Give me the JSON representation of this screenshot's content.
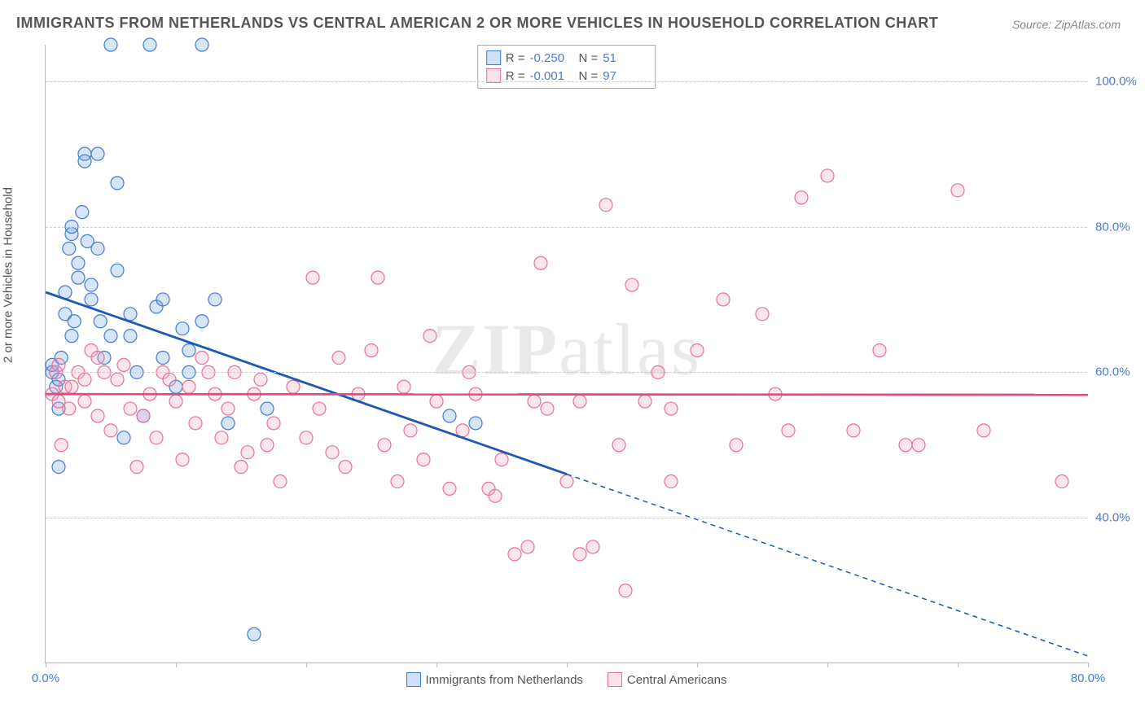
{
  "title": "IMMIGRANTS FROM NETHERLANDS VS CENTRAL AMERICAN 2 OR MORE VEHICLES IN HOUSEHOLD CORRELATION CHART",
  "source": "Source: ZipAtlas.com",
  "watermark": {
    "part1": "ZIP",
    "part2": "atlas"
  },
  "ylabel": "2 or more Vehicles in Household",
  "chart": {
    "type": "scatter",
    "background_color": "#ffffff",
    "grid_color": "#cccccc",
    "axis_color": "#bbbbbb",
    "xlim": [
      0,
      80
    ],
    "ylim": [
      20,
      105
    ],
    "xticks": [
      0,
      10,
      20,
      30,
      40,
      50,
      60,
      70,
      80
    ],
    "xtick_labels": [
      "0.0%",
      "",
      "",
      "",
      "",
      "",
      "",
      "",
      "80.0%"
    ],
    "yticks": [
      40,
      60,
      80,
      100
    ],
    "ytick_labels": [
      "40.0%",
      "60.0%",
      "80.0%",
      "100.0%"
    ],
    "tick_color": "#4a7bd0",
    "label_color": "#555555",
    "marker_radius": 8,
    "marker_stroke_width": 1.2,
    "marker_fill_opacity": 0.28,
    "trend_line_width": 2.8,
    "trend_dash": "6,5"
  },
  "series": [
    {
      "key": "netherlands",
      "label": "Immigrants from Netherlands",
      "color": "#6ea3e8",
      "stroke": "#3f7ad1",
      "line_color": "#1b58b8",
      "R": "-0.250",
      "N": "51",
      "trend": {
        "x1": 0,
        "y1": 71,
        "x2": 40,
        "y2": 46,
        "x_extend": 80,
        "y_extend": 21
      },
      "points": [
        [
          0.5,
          60
        ],
        [
          0.5,
          61
        ],
        [
          0.8,
          58
        ],
        [
          1,
          59
        ],
        [
          1,
          55
        ],
        [
          1,
          47
        ],
        [
          1.2,
          62
        ],
        [
          1.5,
          68
        ],
        [
          1.5,
          71
        ],
        [
          1.8,
          77
        ],
        [
          2,
          79
        ],
        [
          2,
          80
        ],
        [
          2,
          65
        ],
        [
          2.2,
          67
        ],
        [
          2.5,
          73
        ],
        [
          2.5,
          75
        ],
        [
          2.8,
          82
        ],
        [
          3,
          90
        ],
        [
          3,
          89
        ],
        [
          3.2,
          78
        ],
        [
          3.5,
          72
        ],
        [
          3.5,
          70
        ],
        [
          4,
          90
        ],
        [
          4,
          77
        ],
        [
          4.2,
          67
        ],
        [
          4.5,
          62
        ],
        [
          5,
          65
        ],
        [
          5,
          105
        ],
        [
          5.5,
          86
        ],
        [
          5.5,
          74
        ],
        [
          6,
          51
        ],
        [
          6.5,
          68
        ],
        [
          6.5,
          65
        ],
        [
          7,
          60
        ],
        [
          7.5,
          54
        ],
        [
          8,
          105
        ],
        [
          8.5,
          69
        ],
        [
          9,
          70
        ],
        [
          9,
          62
        ],
        [
          10,
          58
        ],
        [
          10.5,
          66
        ],
        [
          11,
          60
        ],
        [
          11,
          63
        ],
        [
          12,
          67
        ],
        [
          12,
          105
        ],
        [
          13,
          70
        ],
        [
          14,
          53
        ],
        [
          16,
          24
        ],
        [
          17,
          55
        ],
        [
          33,
          53
        ],
        [
          31,
          54
        ]
      ]
    },
    {
      "key": "central",
      "label": "Central Americans",
      "color": "#f2a6bd",
      "stroke": "#e76f99",
      "line_color": "#e24b82",
      "R": "-0.001",
      "N": "97",
      "trend": {
        "x1": 0,
        "y1": 57,
        "x2": 80,
        "y2": 56.9,
        "x_extend": 80,
        "y_extend": 56.9
      },
      "points": [
        [
          0.5,
          57
        ],
        [
          0.8,
          60
        ],
        [
          1,
          56
        ],
        [
          1,
          61
        ],
        [
          1.2,
          50
        ],
        [
          1.5,
          58
        ],
        [
          1.8,
          55
        ],
        [
          2,
          58
        ],
        [
          2.5,
          60
        ],
        [
          3,
          56
        ],
        [
          3,
          59
        ],
        [
          3.5,
          63
        ],
        [
          4,
          62
        ],
        [
          4,
          54
        ],
        [
          4.5,
          60
        ],
        [
          5,
          52
        ],
        [
          5.5,
          59
        ],
        [
          6,
          61
        ],
        [
          6.5,
          55
        ],
        [
          7,
          47
        ],
        [
          7.5,
          54
        ],
        [
          8,
          57
        ],
        [
          8.5,
          51
        ],
        [
          9,
          60
        ],
        [
          9.5,
          59
        ],
        [
          10,
          56
        ],
        [
          10.5,
          48
        ],
        [
          11,
          58
        ],
        [
          11.5,
          53
        ],
        [
          12,
          62
        ],
        [
          12.5,
          60
        ],
        [
          13,
          57
        ],
        [
          13.5,
          51
        ],
        [
          14,
          55
        ],
        [
          14.5,
          60
        ],
        [
          15,
          47
        ],
        [
          15.5,
          49
        ],
        [
          16,
          57
        ],
        [
          16.5,
          59
        ],
        [
          17,
          50
        ],
        [
          17.5,
          53
        ],
        [
          18,
          45
        ],
        [
          19,
          58
        ],
        [
          20,
          51
        ],
        [
          20.5,
          73
        ],
        [
          21,
          55
        ],
        [
          22,
          49
        ],
        [
          22.5,
          62
        ],
        [
          23,
          47
        ],
        [
          24,
          57
        ],
        [
          25,
          63
        ],
        [
          25.5,
          73
        ],
        [
          26,
          50
        ],
        [
          27,
          45
        ],
        [
          27.5,
          58
        ],
        [
          28,
          52
        ],
        [
          29,
          48
        ],
        [
          29.5,
          65
        ],
        [
          30,
          56
        ],
        [
          31,
          44
        ],
        [
          32,
          52
        ],
        [
          32.5,
          60
        ],
        [
          33,
          57
        ],
        [
          34,
          44
        ],
        [
          34.5,
          43
        ],
        [
          35,
          48
        ],
        [
          36,
          35
        ],
        [
          37,
          36
        ],
        [
          37.5,
          56
        ],
        [
          38,
          75
        ],
        [
          38.5,
          55
        ],
        [
          40,
          45
        ],
        [
          41,
          56
        ],
        [
          42,
          36
        ],
        [
          43,
          83
        ],
        [
          44,
          50
        ],
        [
          44.5,
          30
        ],
        [
          45,
          72
        ],
        [
          46,
          56
        ],
        [
          47,
          60
        ],
        [
          48,
          55
        ],
        [
          50,
          63
        ],
        [
          52,
          70
        ],
        [
          53,
          50
        ],
        [
          55,
          68
        ],
        [
          56,
          57
        ],
        [
          57,
          52
        ],
        [
          58,
          84
        ],
        [
          60,
          87
        ],
        [
          62,
          52
        ],
        [
          64,
          63
        ],
        [
          66,
          50
        ],
        [
          67,
          50
        ],
        [
          70,
          85
        ],
        [
          72,
          52
        ],
        [
          78,
          45
        ],
        [
          48,
          45
        ],
        [
          41,
          35
        ]
      ]
    }
  ],
  "stats_labels": {
    "R": "R =",
    "N": "N ="
  },
  "legend": {
    "items": [
      {
        "key": "netherlands",
        "label": "Immigrants from Netherlands"
      },
      {
        "key": "central",
        "label": "Central Americans"
      }
    ]
  }
}
